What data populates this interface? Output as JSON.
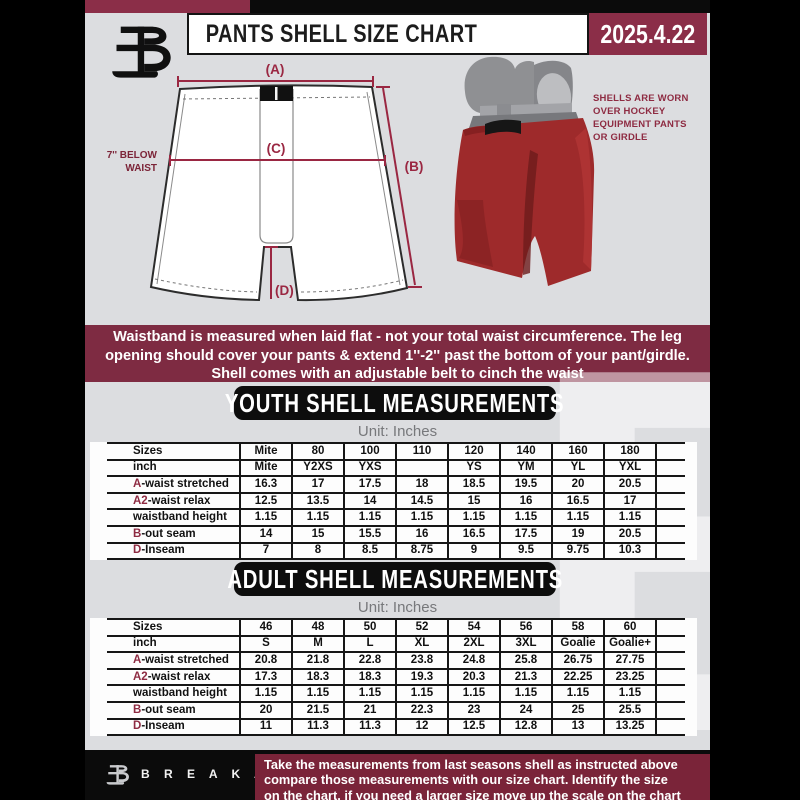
{
  "header": {
    "title": "PANTS SHELL SIZE CHART",
    "date": "2025.4.22"
  },
  "colors": {
    "maroon_header": "#8B2E48",
    "maroon_banner": "#7E2B42",
    "maroon_footer": "#7A2439",
    "maroon_accent": "#8E2B42",
    "page_gray": "#dcdde0",
    "black": "#0b0b0b"
  },
  "diagram": {
    "label_a": "(A)",
    "label_b": "(B)",
    "label_c": "(C)",
    "label_d": "(D)",
    "below_waist_lines": [
      "7'' BELOW",
      "WAIST"
    ]
  },
  "sidenote": {
    "lines": [
      "SHELLS ARE WORN",
      "OVER HOCKEY",
      "EQUIPMENT PANTS",
      "OR GIRDLE"
    ]
  },
  "notice": {
    "lines": [
      "Waistband is measured when laid flat - not your total waist circumference. The leg",
      "opening should cover your pants & extend 1''-2'' past the bottom of your pant/girdle.",
      "Shell comes with an adjustable belt to cinch the waist"
    ]
  },
  "youth": {
    "banner": "YOUTH SHELL MEASUREMENTS",
    "unit": "Unit: Inches"
  },
  "adult": {
    "banner": "ADULT SHELL MEASUREMENTS",
    "unit": "Unit: Inches"
  },
  "tables": {
    "youth": {
      "rows": [
        {
          "prefix": "",
          "label": "Sizes",
          "values": [
            "Mite",
            "80",
            "100",
            "110",
            "120",
            "140",
            "160",
            "180"
          ]
        },
        {
          "prefix": "",
          "label": "inch",
          "values": [
            "Mite",
            "Y2XS",
            "YXS",
            "",
            "YS",
            "YM",
            "YL",
            "YXL"
          ]
        },
        {
          "prefix": "A",
          "label": "-waist stretched",
          "values": [
            "16.3",
            "17",
            "17.5",
            "18",
            "18.5",
            "19.5",
            "20",
            "20.5"
          ]
        },
        {
          "prefix": "A2",
          "label": "-waist relax",
          "values": [
            "12.5",
            "13.5",
            "14",
            "14.5",
            "15",
            "16",
            "16.5",
            "17"
          ]
        },
        {
          "prefix": "",
          "label": "waistband height",
          "values": [
            "1.15",
            "1.15",
            "1.15",
            "1.15",
            "1.15",
            "1.15",
            "1.15",
            "1.15"
          ]
        },
        {
          "prefix": "B",
          "label": "-out seam",
          "values": [
            "14",
            "15",
            "15.5",
            "16",
            "16.5",
            "17.5",
            "19",
            "20.5"
          ]
        },
        {
          "prefix": "D",
          "label": "-Inseam",
          "values": [
            "7",
            "8",
            "8.5",
            "8.75",
            "9",
            "9.5",
            "9.75",
            "10.3"
          ]
        }
      ]
    },
    "adult": {
      "rows": [
        {
          "prefix": "",
          "label": "Sizes",
          "values": [
            "46",
            "48",
            "50",
            "52",
            "54",
            "56",
            "58",
            "60"
          ]
        },
        {
          "prefix": "",
          "label": "inch",
          "values": [
            "S",
            "M",
            "L",
            "XL",
            "2XL",
            "3XL",
            "Goalie",
            "Goalie+"
          ]
        },
        {
          "prefix": "A",
          "label": "-waist stretched",
          "values": [
            "20.8",
            "21.8",
            "22.8",
            "23.8",
            "24.8",
            "25.8",
            "26.75",
            "27.75"
          ]
        },
        {
          "prefix": "A2",
          "label": "-waist relax",
          "values": [
            "17.3",
            "18.3",
            "18.3",
            "19.3",
            "20.3",
            "21.3",
            "22.25",
            "23.25"
          ]
        },
        {
          "prefix": "",
          "label": "waistband height",
          "values": [
            "1.15",
            "1.15",
            "1.15",
            "1.15",
            "1.15",
            "1.15",
            "1.15",
            "1.15"
          ]
        },
        {
          "prefix": "B",
          "label": "-out seam",
          "values": [
            "20",
            "21.5",
            "21",
            "22.3",
            "23",
            "24",
            "25",
            "25.5"
          ]
        },
        {
          "prefix": "D",
          "label": "-Inseam",
          "values": [
            "11",
            "11.3",
            "11.3",
            "12",
            "12.5",
            "12.8",
            "13",
            "13.25"
          ]
        }
      ]
    }
  },
  "watermark": {
    "letter": "B"
  },
  "footer": {
    "brand": "B R E A K A W A Y",
    "note_lines": [
      "Take the measurements from last seasons shell as instructed above",
      "compare those measurements  with our size chart. Identify the size",
      "on the chart, if you need a larger size move up the scale on the chart"
    ]
  }
}
